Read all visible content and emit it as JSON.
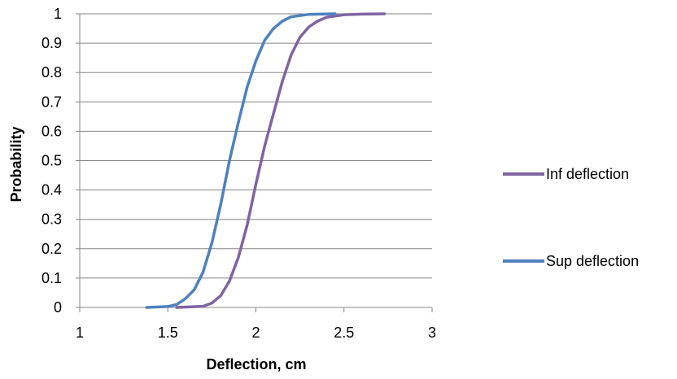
{
  "chart_data": {
    "type": "line",
    "xlabel": "Deflection, cm",
    "ylabel": "Probability",
    "xlim": [
      1,
      3
    ],
    "ylim": [
      0,
      1
    ],
    "x_ticks": [
      1,
      1.5,
      2,
      2.5,
      3
    ],
    "y_ticks": [
      0,
      0.1,
      0.2,
      0.3,
      0.4,
      0.5,
      0.6,
      0.7,
      0.8,
      0.9,
      1
    ],
    "grid": "horizontal",
    "legend_position": "right",
    "series": [
      {
        "name": "Inf deflection",
        "color": "#8064A2",
        "points": [
          [
            1.55,
            0.0
          ],
          [
            1.7,
            0.004
          ],
          [
            1.75,
            0.015
          ],
          [
            1.8,
            0.04
          ],
          [
            1.85,
            0.09
          ],
          [
            1.9,
            0.17
          ],
          [
            1.95,
            0.28
          ],
          [
            2.0,
            0.42
          ],
          [
            2.05,
            0.55
          ],
          [
            2.1,
            0.66
          ],
          [
            2.15,
            0.77
          ],
          [
            2.2,
            0.86
          ],
          [
            2.25,
            0.92
          ],
          [
            2.3,
            0.955
          ],
          [
            2.35,
            0.975
          ],
          [
            2.4,
            0.988
          ],
          [
            2.5,
            0.997
          ],
          [
            2.6,
            0.999
          ],
          [
            2.73,
            1.0
          ]
        ]
      },
      {
        "name": "Sup deflection",
        "color": "#4F81BD",
        "points": [
          [
            1.38,
            0.0
          ],
          [
            1.5,
            0.003
          ],
          [
            1.55,
            0.01
          ],
          [
            1.6,
            0.03
          ],
          [
            1.65,
            0.06
          ],
          [
            1.7,
            0.12
          ],
          [
            1.75,
            0.22
          ],
          [
            1.8,
            0.35
          ],
          [
            1.85,
            0.5
          ],
          [
            1.9,
            0.63
          ],
          [
            1.95,
            0.75
          ],
          [
            2.0,
            0.84
          ],
          [
            2.05,
            0.91
          ],
          [
            2.1,
            0.95
          ],
          [
            2.15,
            0.975
          ],
          [
            2.2,
            0.99
          ],
          [
            2.3,
            0.998
          ],
          [
            2.45,
            1.0
          ]
        ]
      }
    ]
  }
}
